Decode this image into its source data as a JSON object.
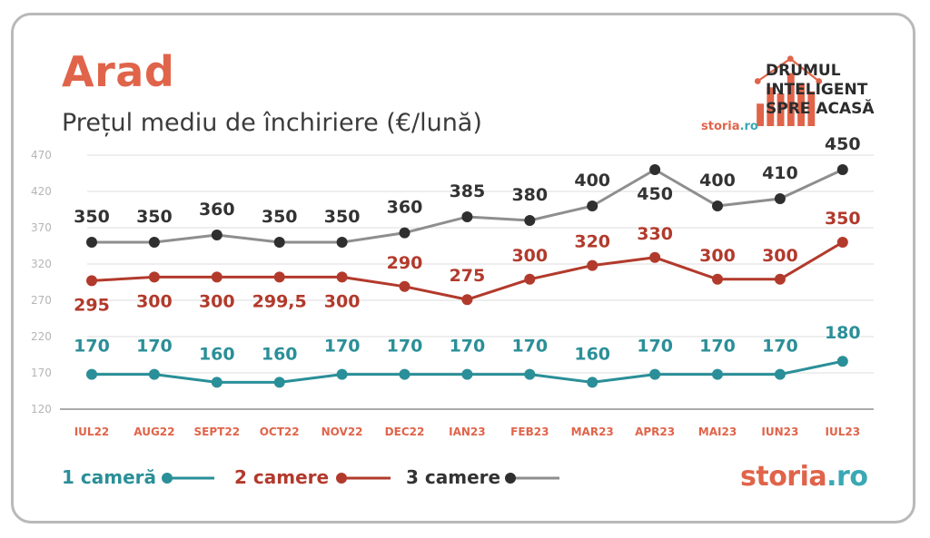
{
  "title": "Arad",
  "subtitle": "Prețul mediu de închiriere (€/lună)",
  "brand": {
    "tagline": [
      "DRUMUL",
      "INTELIGENT",
      "SPRE ACASĂ"
    ],
    "small_logo_a": "storia",
    "small_logo_b": ".ro",
    "big_logo_a": "storia",
    "big_logo_b": ".ro"
  },
  "colors": {
    "series1": "#2a8f98",
    "series2": "#b23a2c",
    "series3": "#8e8e8e",
    "marker3": "#2f2f2f",
    "label3": "#333333",
    "tick_x": "#e0644a",
    "grid": "#dcdcdc",
    "axis_y": "#b5b5b5"
  },
  "chart_data": {
    "type": "line",
    "categories": [
      "IUL22",
      "AUG22",
      "SEPT22",
      "OCT22",
      "NOV22",
      "DEC22",
      "IAN23",
      "FEB23",
      "MAR23",
      "APR23",
      "MAI23",
      "IUN23",
      "IUL23"
    ],
    "yticks": [
      120,
      170,
      220,
      270,
      320,
      370,
      420,
      470
    ],
    "ylim": [
      120,
      470
    ],
    "grid": true,
    "legend_position": "bottom-left",
    "series": [
      {
        "name": "1 cameră",
        "values": [
          170,
          170,
          160,
          160,
          170,
          170,
          170,
          170,
          160,
          170,
          170,
          170,
          180
        ],
        "labels": [
          "170",
          "170",
          "160",
          "160",
          "170",
          "170",
          "170",
          "170",
          "160",
          "170",
          "170",
          "170",
          "180"
        ],
        "plotted": [
          168,
          168,
          157,
          157,
          168,
          168,
          168,
          168,
          157,
          168,
          168,
          168,
          186
        ]
      },
      {
        "name": "2 camere",
        "values": [
          295,
          300,
          300,
          299.5,
          300,
          290,
          275,
          300,
          320,
          330,
          300,
          300,
          350
        ],
        "labels": [
          "295",
          "300",
          "300",
          "299,5",
          "300",
          "290",
          "275",
          "300",
          "320",
          "330",
          "300",
          "300",
          "350"
        ],
        "plotted": [
          297,
          302,
          302,
          302,
          302,
          289,
          271,
          299,
          318,
          329,
          299,
          299,
          350
        ]
      },
      {
        "name": "3 camere",
        "values": [
          350,
          350,
          360,
          350,
          350,
          360,
          385,
          380,
          400,
          450,
          400,
          410,
          450
        ],
        "labels": [
          "350",
          "350",
          "360",
          "350",
          "350",
          "360",
          "385",
          "380",
          "400",
          "450",
          "400",
          "410",
          "450"
        ],
        "plotted": [
          350,
          350,
          360,
          350,
          350,
          363,
          385,
          380,
          400,
          450,
          400,
          410,
          450
        ]
      }
    ]
  }
}
